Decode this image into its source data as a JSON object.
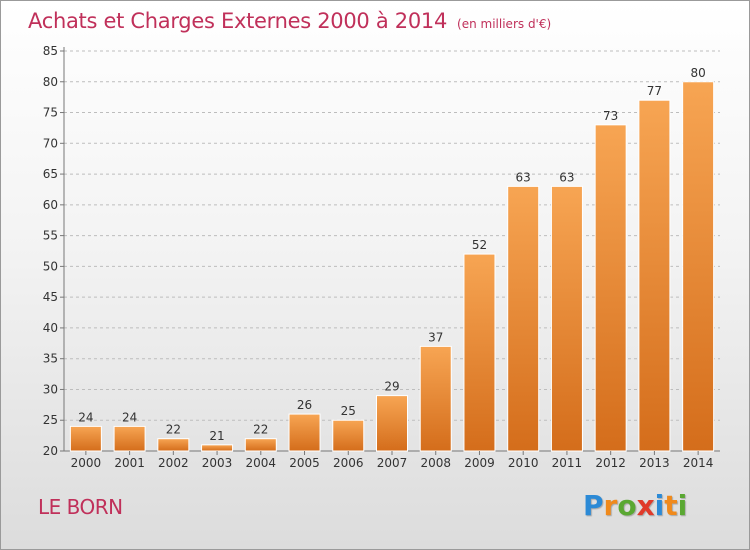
{
  "chart_data": {
    "type": "bar",
    "title": "Achats et Charges Externes 2000 à 2014",
    "subtitle": "(en milliers d'€)",
    "categories": [
      "2000",
      "2001",
      "2002",
      "2003",
      "2004",
      "2005",
      "2006",
      "2007",
      "2008",
      "2009",
      "2010",
      "2011",
      "2012",
      "2013",
      "2014"
    ],
    "values": [
      24,
      24,
      22,
      21,
      22,
      26,
      25,
      29,
      37,
      52,
      63,
      63,
      73,
      77,
      80
    ],
    "data_labels": [
      "24",
      "24",
      "22",
      "21",
      "22",
      "26",
      "25",
      "29",
      "37",
      "52",
      "63",
      "63",
      "73",
      "77",
      "80"
    ],
    "yticks": [
      "20",
      "25",
      "30",
      "35",
      "40",
      "45",
      "50",
      "55",
      "60",
      "65",
      "70",
      "75",
      "80",
      "85"
    ],
    "ylim": [
      20,
      85
    ],
    "grid": true,
    "bar_color_top": "#f7a553",
    "bar_color_bottom": "#d46d1b"
  },
  "commune": "LE BORN",
  "logo": {
    "letters": [
      "P",
      "r",
      "o",
      "x",
      "i",
      "t",
      "i"
    ],
    "colors": [
      "#2c8ad6",
      "#f08a1c",
      "#5aa832",
      "#e03a2a",
      "#2c8ad6",
      "#f08a1c",
      "#5aa832"
    ]
  },
  "colors": {
    "accent": "#c0305a"
  }
}
